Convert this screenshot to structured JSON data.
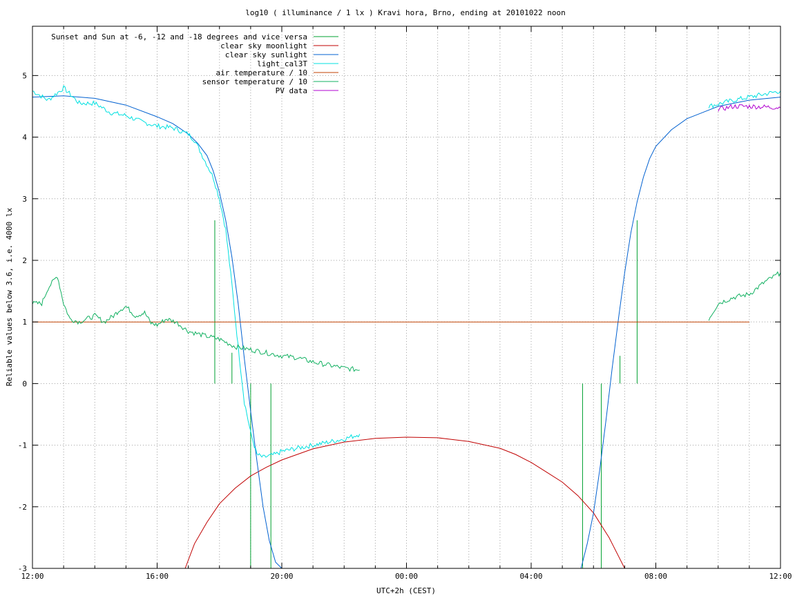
{
  "chart_data": {
    "type": "line",
    "title": "log10 ( illuminance / 1 lx ) Kravi hora, Brno, ending at 20101022 noon",
    "xlabel": "UTC+2h (CEST)",
    "ylabel": "Reliable values below 3.6, i.e. 4000 lx",
    "xlim": [
      0,
      24
    ],
    "ylim": [
      -3,
      5.8
    ],
    "x_unit": "hours since 12:00 (UTC+2h)",
    "x_ticks": [
      {
        "x": 0,
        "label": "12:00"
      },
      {
        "x": 4,
        "label": "16:00"
      },
      {
        "x": 8,
        "label": "20:00"
      },
      {
        "x": 12,
        "label": "00:00"
      },
      {
        "x": 16,
        "label": "04:00"
      },
      {
        "x": 20,
        "label": "08:00"
      },
      {
        "x": 24,
        "label": "12:00"
      }
    ],
    "x_minor_step": 1,
    "y_ticks": [
      -3,
      -2,
      -1,
      0,
      1,
      2,
      3,
      4,
      5
    ],
    "grid": true,
    "legend_position": "top-left",
    "series": [
      {
        "name": "Sunset and Sun at -6, -12 and -18 degrees and vice versa",
        "color": "#00a030",
        "style": "impulses",
        "points": [
          [
            5.85,
            2.65
          ],
          [
            6.4,
            0.5
          ],
          [
            7.0,
            -3
          ],
          [
            7.65,
            -3
          ],
          [
            17.65,
            -3
          ],
          [
            18.25,
            -3
          ],
          [
            18.85,
            0.45
          ],
          [
            19.4,
            2.65
          ]
        ]
      },
      {
        "name": "clear sky moonlight",
        "color": "#c00000",
        "points": [
          [
            4.9,
            -3.0
          ],
          [
            5.2,
            -2.6
          ],
          [
            5.6,
            -2.25
          ],
          [
            6.0,
            -1.95
          ],
          [
            6.5,
            -1.7
          ],
          [
            7.0,
            -1.5
          ],
          [
            7.5,
            -1.36
          ],
          [
            8.0,
            -1.24
          ],
          [
            9.0,
            -1.06
          ],
          [
            10.0,
            -0.95
          ],
          [
            11.0,
            -0.89
          ],
          [
            12.0,
            -0.87
          ],
          [
            13.0,
            -0.88
          ],
          [
            14.0,
            -0.94
          ],
          [
            15.0,
            -1.05
          ],
          [
            15.5,
            -1.15
          ],
          [
            16.0,
            -1.28
          ],
          [
            16.5,
            -1.44
          ],
          [
            17.0,
            -1.6
          ],
          [
            17.5,
            -1.82
          ],
          [
            18.0,
            -2.1
          ],
          [
            18.5,
            -2.5
          ],
          [
            18.8,
            -2.8
          ],
          [
            19.0,
            -3.0
          ]
        ]
      },
      {
        "name": "clear sky sunlight",
        "color": "#0060d0",
        "points": [
          [
            0,
            4.65
          ],
          [
            1.0,
            4.67
          ],
          [
            2.0,
            4.63
          ],
          [
            3.0,
            4.52
          ],
          [
            4.0,
            4.33
          ],
          [
            4.5,
            4.22
          ],
          [
            5.0,
            4.05
          ],
          [
            5.3,
            3.9
          ],
          [
            5.6,
            3.7
          ],
          [
            5.8,
            3.45
          ],
          [
            6.0,
            3.1
          ],
          [
            6.2,
            2.65
          ],
          [
            6.4,
            2.05
          ],
          [
            6.6,
            1.3
          ],
          [
            6.8,
            0.4
          ],
          [
            7.0,
            -0.45
          ],
          [
            7.2,
            -1.25
          ],
          [
            7.4,
            -2.0
          ],
          [
            7.6,
            -2.55
          ],
          [
            7.8,
            -2.9
          ],
          [
            8.0,
            -3.0
          ],
          [
            17.6,
            -3.0
          ],
          [
            17.8,
            -2.6
          ],
          [
            18.0,
            -2.1
          ],
          [
            18.2,
            -1.4
          ],
          [
            18.4,
            -0.6
          ],
          [
            18.6,
            0.25
          ],
          [
            18.8,
            1.05
          ],
          [
            19.0,
            1.8
          ],
          [
            19.2,
            2.45
          ],
          [
            19.4,
            2.95
          ],
          [
            19.6,
            3.35
          ],
          [
            19.8,
            3.65
          ],
          [
            20.0,
            3.85
          ],
          [
            20.5,
            4.12
          ],
          [
            21.0,
            4.3
          ],
          [
            22.0,
            4.5
          ],
          [
            23.0,
            4.6
          ],
          [
            24.0,
            4.65
          ]
        ]
      },
      {
        "name": "light_cal3T",
        "color": "#00e0e0",
        "style": "noisy",
        "points": [
          [
            0,
            4.75
          ],
          [
            0.5,
            4.6
          ],
          [
            1.0,
            4.8
          ],
          [
            1.5,
            4.55
          ],
          [
            2.0,
            4.55
          ],
          [
            2.5,
            4.4
          ],
          [
            3.0,
            4.35
          ],
          [
            3.5,
            4.25
          ],
          [
            4.0,
            4.18
          ],
          [
            4.5,
            4.15
          ],
          [
            5.0,
            4.05
          ],
          [
            5.2,
            3.95
          ],
          [
            5.5,
            3.65
          ],
          [
            5.8,
            3.35
          ],
          [
            6.0,
            3.0
          ],
          [
            6.2,
            2.5
          ],
          [
            6.4,
            1.6
          ],
          [
            6.6,
            0.6
          ],
          [
            6.8,
            -0.3
          ],
          [
            7.0,
            -0.8
          ],
          [
            7.2,
            -1.15
          ],
          [
            7.4,
            -1.2
          ],
          [
            7.8,
            -1.15
          ],
          [
            8.0,
            -1.1
          ],
          [
            9.0,
            -1.0
          ],
          [
            10.0,
            -0.9
          ],
          [
            10.5,
            -0.82
          ]
        ],
        "points_2": [
          [
            21.7,
            4.5
          ],
          [
            22.5,
            4.6
          ],
          [
            23.0,
            4.65
          ],
          [
            24.0,
            4.75
          ]
        ]
      },
      {
        "name": "air temperature / 10",
        "color": "#c04000",
        "points": [
          [
            0,
            1.0
          ],
          [
            23.0,
            1.0
          ]
        ]
      },
      {
        "name": "sensor temperature / 10",
        "color": "#10b060",
        "style": "noisy",
        "points": [
          [
            0,
            1.3
          ],
          [
            0.3,
            1.3
          ],
          [
            0.5,
            1.55
          ],
          [
            0.8,
            1.75
          ],
          [
            1.0,
            1.3
          ],
          [
            1.2,
            1.05
          ],
          [
            1.5,
            1.0
          ],
          [
            2.0,
            1.1
          ],
          [
            2.3,
            1.0
          ],
          [
            2.6,
            1.1
          ],
          [
            2.8,
            1.2
          ],
          [
            3.0,
            1.25
          ],
          [
            3.3,
            1.1
          ],
          [
            3.6,
            1.15
          ],
          [
            3.8,
            0.98
          ],
          [
            4.0,
            0.95
          ],
          [
            4.3,
            1.05
          ],
          [
            4.6,
            1.0
          ],
          [
            5.0,
            0.85
          ],
          [
            5.5,
            0.78
          ],
          [
            6.0,
            0.72
          ],
          [
            6.5,
            0.6
          ],
          [
            7.0,
            0.55
          ],
          [
            7.5,
            0.5
          ],
          [
            8.0,
            0.45
          ],
          [
            8.5,
            0.42
          ],
          [
            9.0,
            0.35
          ],
          [
            9.5,
            0.3
          ],
          [
            10.0,
            0.25
          ],
          [
            10.5,
            0.22
          ]
        ],
        "points_2": [
          [
            21.7,
            1.05
          ],
          [
            22.0,
            1.3
          ],
          [
            22.5,
            1.4
          ],
          [
            23.0,
            1.45
          ],
          [
            23.5,
            1.65
          ],
          [
            24.0,
            1.8
          ]
        ]
      },
      {
        "name": "PV data",
        "color": "#b000d0",
        "style": "noisy",
        "points": [
          [
            22.0,
            4.45
          ],
          [
            22.5,
            4.5
          ],
          [
            23.0,
            4.5
          ],
          [
            24.0,
            4.48
          ]
        ]
      }
    ]
  }
}
